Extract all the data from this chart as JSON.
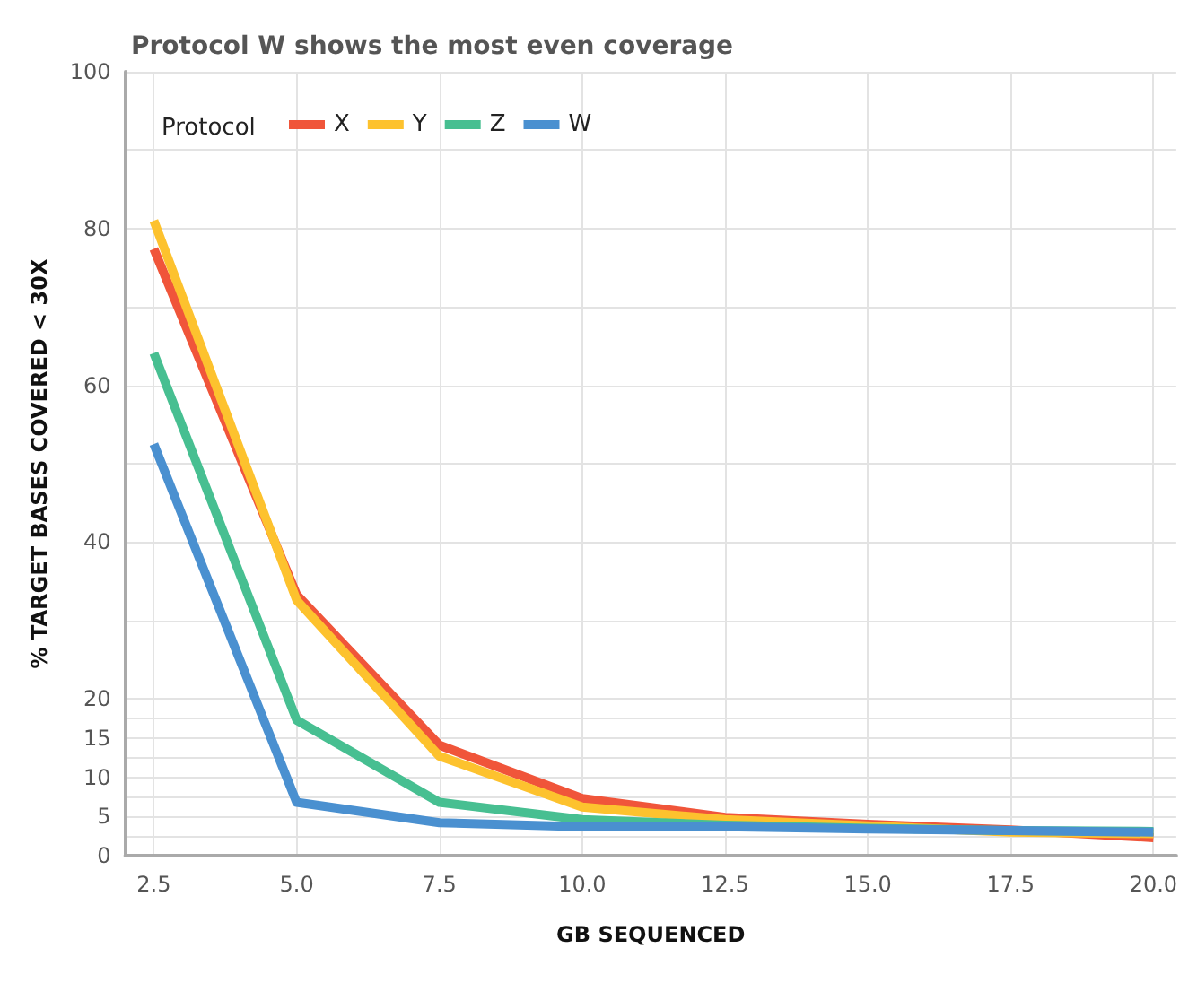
{
  "chart_data": {
    "type": "line",
    "title": "Protocol W shows the most even coverage",
    "xlabel": "GB SEQUENCED",
    "ylabel": "% TARGET BASES COVERED < 30X",
    "legend_title": "Protocol",
    "x": [
      2.5,
      5.0,
      7.5,
      10.0,
      12.5,
      15.0,
      17.5,
      20.0
    ],
    "series": [
      {
        "name": "X",
        "color": "#f0553a",
        "values": [
          77.4,
          33.3,
          14.1,
          7.3,
          4.9,
          4.0,
          3.3,
          2.3
        ]
      },
      {
        "name": "Y",
        "color": "#fdc22e",
        "values": [
          81,
          32.6,
          12.7,
          6.2,
          4.6,
          3.8,
          3.0,
          2.8
        ]
      },
      {
        "name": "Z",
        "color": "#47bf91",
        "values": [
          64.1,
          17.3,
          6.8,
          4.6,
          3.9,
          3.5,
          3.2,
          3.1
        ]
      },
      {
        "name": "W",
        "color": "#4a90d0",
        "values": [
          52.5,
          6.8,
          4.2,
          3.7,
          3.7,
          3.4,
          3.2,
          3.0
        ]
      }
    ],
    "xlim": [
      2.0,
      20.4
    ],
    "xticks": [
      {
        "value": 2.5,
        "label": "2.5"
      },
      {
        "value": 5.0,
        "label": "5.0"
      },
      {
        "value": 7.5,
        "label": "7.5"
      },
      {
        "value": 10.0,
        "label": "10.0"
      },
      {
        "value": 12.5,
        "label": "12.5"
      },
      {
        "value": 15.0,
        "label": "15.0"
      },
      {
        "value": 17.5,
        "label": "17.5"
      },
      {
        "value": 20.0,
        "label": "20.0"
      }
    ],
    "ylim": [
      0,
      100
    ],
    "yticks": [
      0,
      {
        "value": 2.5,
        "label": null
      },
      5,
      {
        "value": 7.5,
        "label": null
      },
      10,
      {
        "value": 12.5,
        "label": null
      },
      15,
      {
        "value": 17.5,
        "label": null
      },
      20,
      {
        "value": 30,
        "label": null
      },
      40,
      {
        "value": 50,
        "label": null
      },
      60,
      {
        "value": 70,
        "label": null
      },
      80,
      {
        "value": 90,
        "label": null
      },
      100
    ],
    "grid": true,
    "legend": "top left",
    "marker": "none",
    "line_style": "solid"
  }
}
